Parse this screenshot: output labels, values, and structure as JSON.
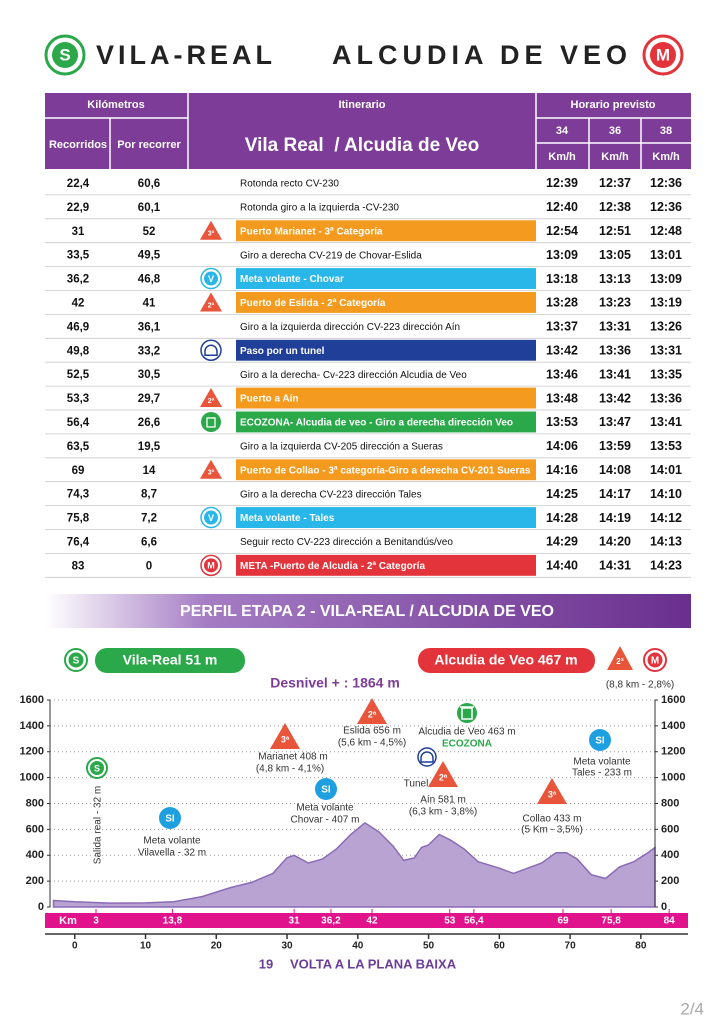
{
  "header": {
    "start_icon": "S",
    "start": "VILA-REAL",
    "finish": "ALCUDIA DE VEO",
    "finish_icon": "M"
  },
  "table": {
    "headers": {
      "km": "Kilómetros",
      "itinerary": "Itinerario",
      "schedule": "Horario previsto",
      "done": "Recorridos",
      "remaining": "Por recorrer",
      "route": "Vila Real  / Alcudia de Veo",
      "speeds": [
        "34",
        "36",
        "38"
      ],
      "unit": "Km/h"
    },
    "rows": [
      {
        "cells": [
          "22,4",
          "60,6",
          "Rotonda recto CV-230",
          "12:39",
          "12:37",
          "12:36"
        ]
      },
      {
        "cells": [
          "22,9",
          "60,1",
          "Rotonda giro a la izquierda -CV-230",
          "12:40",
          "12:38",
          "12:36"
        ]
      },
      {
        "icon": "3ª",
        "color": "#f39a1f",
        "cells": [
          "31",
          "52",
          "Puerto Marianet - 3ª Categoría",
          "12:54",
          "12:51",
          "12:48"
        ]
      },
      {
        "cells": [
          "33,5",
          "49,5",
          "Giro a derecha CV-219 de Chovar-Eslida",
          "13:09",
          "13:05",
          "13:01"
        ]
      },
      {
        "icon": "V",
        "color": "#29b6e8",
        "cells": [
          "36,2",
          "46,8",
          "Meta volante - Chovar",
          "13:18",
          "13:13",
          "13:09"
        ]
      },
      {
        "icon": "2ª",
        "color": "#f39a1f",
        "cells": [
          "42",
          "41",
          "Puerto de Eslida - 2ª Categoría",
          "13:28",
          "13:23",
          "13:19"
        ]
      },
      {
        "cells": [
          "46,9",
          "36,1",
          "Giro a la izquierda dirección CV-223 dirección Aín",
          "13:37",
          "13:31",
          "13:26"
        ]
      },
      {
        "color": "#1f3f98",
        "cells": [
          "49,8",
          "33,2",
          "Paso por un tunel",
          "13:42",
          "13:36",
          "13:31"
        ]
      },
      {
        "cells": [
          "52,5",
          "30,5",
          "Giro a la derecha- Cv-223 dirección Alcudia de Veo",
          "13:46",
          "13:41",
          "13:35"
        ]
      },
      {
        "icon": "2ª",
        "color": "#f39a1f",
        "cells": [
          "53,3",
          "29,7",
          "Puerto a Aín",
          "13:48",
          "13:42",
          "13:36"
        ]
      },
      {
        "color": "#2aa84a",
        "cells": [
          "56,4",
          "26,6",
          "ECOZONA- Alcudia de veo - Giro a derecha dirección Veo",
          "13:53",
          "13:47",
          "13:41"
        ]
      },
      {
        "cells": [
          "63,5",
          "19,5",
          "Giro a la izquierda CV-205 dirección a Sueras",
          "14:06",
          "13:59",
          "13:53"
        ]
      },
      {
        "icon": "3ª",
        "color": "#f39a1f",
        "cells": [
          "69",
          "14",
          "Puerto de Collao - 3ª categoría-Giro a derecha CV-201 Sueras",
          "14:16",
          "14:08",
          "14:01"
        ]
      },
      {
        "cells": [
          "74,3",
          "8,7",
          "Giro a la derecha CV-223 dirección Tales",
          "14:25",
          "14:17",
          "14:10"
        ]
      },
      {
        "icon": "V",
        "color": "#29b6e8",
        "cells": [
          "75,8",
          "7,2",
          "Meta volante - Tales",
          "14:28",
          "14:19",
          "14:12"
        ]
      },
      {
        "cells": [
          "76,4",
          "6,6",
          "Seguir recto CV-223 dirección a Benitandús/veo",
          "14:29",
          "14:20",
          "14:13"
        ]
      },
      {
        "icon": "M",
        "color": "#e3343b",
        "cells": [
          "83",
          "0",
          "META -Puerto de Alcudia - 2ª Categoría",
          "14:40",
          "14:31",
          "14:23"
        ]
      }
    ]
  },
  "chart_data": {
    "type": "area",
    "title": "PERFIL ETAPA 2 - VILA-REAL / ALCUDIA DE VEO",
    "start_icon": "S",
    "start_label": "Vila-Real 51 m",
    "finish_label": "Alcudia de Veo 467 m",
    "finish_cat": "2ª",
    "finish_icon": "M",
    "gain": "Desnivel + : 1864 m",
    "final_climb": "(8,8 km - 2,8%)",
    "x": [
      -3,
      0,
      5,
      10,
      14,
      18,
      22,
      25,
      28,
      30,
      31,
      33,
      35,
      37,
      39,
      41,
      43,
      45,
      46.5,
      48,
      49,
      50,
      51.5,
      53,
      55,
      57,
      60,
      62,
      64,
      66,
      68,
      69.5,
      71,
      73,
      75,
      77,
      79,
      81,
      82
    ],
    "values": [
      50,
      40,
      30,
      32,
      40,
      80,
      150,
      190,
      260,
      380,
      400,
      340,
      370,
      450,
      560,
      650,
      580,
      470,
      360,
      380,
      460,
      480,
      560,
      520,
      450,
      350,
      300,
      260,
      300,
      340,
      420,
      420,
      370,
      250,
      220,
      310,
      350,
      420,
      460
    ],
    "color": "#b9a3d3",
    "xlim": [
      -3.5,
      82
    ],
    "ylim": [
      0,
      1600
    ],
    "xticks": [
      0,
      10,
      20,
      30,
      40,
      50,
      60,
      70,
      80
    ],
    "yticks": [
      0,
      200,
      400,
      600,
      800,
      1000,
      1200,
      1400,
      1600
    ],
    "grid": true,
    "km_label": "Km",
    "km_marks": [
      3,
      {
        "value": 13.8,
        "label": "13,8"
      },
      31,
      {
        "value": 36.2,
        "label": "36,2"
      },
      42,
      53,
      {
        "value": 56.4,
        "label": "56,4"
      },
      69,
      {
        "value": 75.8,
        "label": "75,8"
      },
      84
    ],
    "annotations": [
      "Salida real - 32 m",
      "Meta volante",
      "Vilavella - 32 m",
      "Marianet 408 m",
      "(4,8 km - 4,1%)",
      "Meta volante",
      "Chovar - 407 m",
      "Eslida 656 m",
      "(5,6 km - 4,5%)",
      "Tunel",
      "Alcudia de Veo 463 m",
      "ECOZONA",
      "Aín 581 m",
      "(6,3 km - 3,8%)",
      "Collao 433 m",
      "(5 Km - 3,5%)",
      "Meta volante",
      "Tales - 233 m"
    ],
    "markers": [
      "S",
      "SI",
      "3ª",
      "SI",
      "2ª",
      "2ª",
      "3ª",
      "SI"
    ]
  },
  "footer": {
    "number": "19",
    "text": "VOLTA A LA PLANA BAIXA",
    "page": "2/4"
  }
}
